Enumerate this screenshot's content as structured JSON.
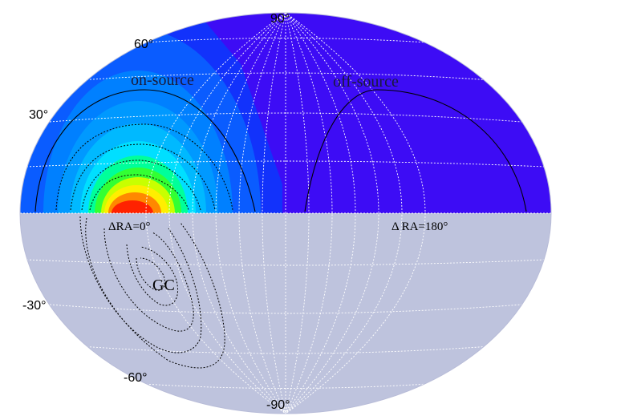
{
  "chart_data": {
    "type": "heatmap",
    "projection": "Hammer-Aitoff (equatorial, north half shaded by exposure)",
    "lat_labels": [
      "90°",
      "60°",
      "30°",
      "-30°",
      "-60°",
      "-90°"
    ],
    "region_labels": {
      "on": "on-source",
      "off": "off-source"
    },
    "ra_labels": {
      "on": "ΔRA=0°",
      "off": "Δ RA=180°"
    },
    "gc_label": "GC",
    "colors": {
      "south_fill": "#bec3dd",
      "north_base": "#3d0cf5",
      "graticule": "#ffffff",
      "contour": "#000000"
    }
  }
}
